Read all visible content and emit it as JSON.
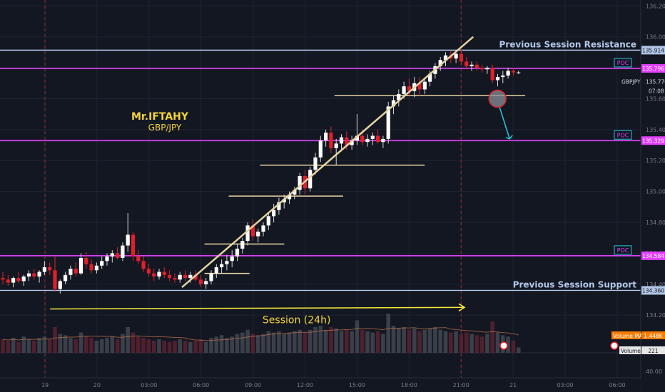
{
  "chart_data": {
    "type": "candlestick",
    "symbol": "GBPJPY",
    "last_price": "135.770",
    "countdown": "07:08",
    "author": "Mr.IFTAHY",
    "pair": "GBP/JPY",
    "price_ylim": [
      134.15,
      136.22
    ],
    "y_ticks": [
      "136.200",
      "136.000",
      "135.800",
      "135.600",
      "135.400",
      "135.200",
      "135.000",
      "134.800",
      "134.600",
      "134.400",
      "134.200"
    ],
    "x_labels": [
      {
        "label": "19",
        "t": 0.0
      },
      {
        "label": "20",
        "t": 3.0
      },
      {
        "label": "03:00",
        "t": 6.0
      },
      {
        "label": "06:00",
        "t": 9.0
      },
      {
        "label": "09:00",
        "t": 12.0
      },
      {
        "label": "12:00",
        "t": 15.0
      },
      {
        "label": "15:00",
        "t": 18.0
      },
      {
        "label": "18:00",
        "t": 21.0
      },
      {
        "label": "21:00",
        "t": 24.0
      },
      {
        "label": "21",
        "t": 27.0
      },
      {
        "label": "03:00",
        "t": 30.0
      },
      {
        "label": "06:00",
        "t": 33.0
      }
    ],
    "volume_axis_label": "40.00",
    "session_separators_t": [
      0.0,
      24.0
    ],
    "levels": [
      {
        "price": 135.914,
        "label": "135.914",
        "kind": "resistance",
        "annotation": "Previous Session Resistance",
        "color": "#b2c6e6"
      },
      {
        "price": 135.796,
        "label": "135.796",
        "kind": "poc",
        "annotation": "POC",
        "color": "#e040fb"
      },
      {
        "price": 135.329,
        "label": "135.329",
        "kind": "poc",
        "annotation": "POC",
        "color": "#e040fb"
      },
      {
        "price": 134.584,
        "label": "134.584",
        "kind": "poc",
        "annotation": "POC",
        "color": "#e040fb"
      },
      {
        "price": 134.36,
        "label": "134.360",
        "kind": "support",
        "annotation": "Previous Session Support",
        "color": "#b2c6e6"
      }
    ],
    "trendline": {
      "t1": 7.9,
      "p1": 134.38,
      "t2": 24.7,
      "p2": 136.0,
      "color": "#e6d3a3"
    },
    "horizontal_segments": [
      {
        "t1": 9.2,
        "t2": 11.8,
        "p": 134.47
      },
      {
        "t1": 9.2,
        "t2": 13.8,
        "p": 134.66
      },
      {
        "t1": 10.6,
        "t2": 17.2,
        "p": 134.97
      },
      {
        "t1": 12.4,
        "t2": 21.9,
        "p": 135.17
      },
      {
        "t1": 16.7,
        "t2": 27.7,
        "p": 135.62
      }
    ],
    "session_arrow": {
      "t1": 0.3,
      "t2": 24.2,
      "p_start": 134.24,
      "p_end": 134.25,
      "label": "Session (24h)",
      "color": "#f5eb3b"
    },
    "projection": {
      "circle_t": 26.1,
      "circle_p": 135.6,
      "arrow_t": 26.8,
      "arrow_p": 135.34,
      "color": "#26c6da"
    },
    "volume_ma": {
      "label": "Volume MA",
      "value": "1.448K"
    },
    "volume": {
      "label": "Volume",
      "value": "221"
    },
    "candles": [
      {
        "o": 134.44,
        "h": 134.48,
        "l": 134.4,
        "c": 134.43
      },
      {
        "o": 134.43,
        "h": 134.46,
        "l": 134.39,
        "c": 134.41
      },
      {
        "o": 134.41,
        "h": 134.45,
        "l": 134.38,
        "c": 134.44
      },
      {
        "o": 134.44,
        "h": 134.48,
        "l": 134.41,
        "c": 134.42
      },
      {
        "o": 134.42,
        "h": 134.46,
        "l": 134.39,
        "c": 134.45
      },
      {
        "o": 134.45,
        "h": 134.49,
        "l": 134.42,
        "c": 134.47
      },
      {
        "o": 134.47,
        "h": 134.5,
        "l": 134.43,
        "c": 134.45
      },
      {
        "o": 134.45,
        "h": 134.49,
        "l": 134.41,
        "c": 134.48
      },
      {
        "o": 134.48,
        "h": 134.55,
        "l": 134.46,
        "c": 134.51
      },
      {
        "o": 134.51,
        "h": 134.54,
        "l": 134.46,
        "c": 134.49
      },
      {
        "o": 134.49,
        "h": 134.58,
        "l": 134.35,
        "c": 134.37
      },
      {
        "o": 134.37,
        "h": 134.43,
        "l": 134.34,
        "c": 134.42
      },
      {
        "o": 134.42,
        "h": 134.48,
        "l": 134.4,
        "c": 134.46
      },
      {
        "o": 134.46,
        "h": 134.52,
        "l": 134.43,
        "c": 134.5
      },
      {
        "o": 134.5,
        "h": 134.54,
        "l": 134.45,
        "c": 134.47
      },
      {
        "o": 134.47,
        "h": 134.6,
        "l": 134.46,
        "c": 134.57
      },
      {
        "o": 134.57,
        "h": 134.61,
        "l": 134.5,
        "c": 134.53
      },
      {
        "o": 134.53,
        "h": 134.56,
        "l": 134.47,
        "c": 134.49
      },
      {
        "o": 134.49,
        "h": 134.54,
        "l": 134.47,
        "c": 134.52
      },
      {
        "o": 134.52,
        "h": 134.58,
        "l": 134.5,
        "c": 134.55
      },
      {
        "o": 134.55,
        "h": 134.6,
        "l": 134.52,
        "c": 134.58
      },
      {
        "o": 134.58,
        "h": 134.62,
        "l": 134.54,
        "c": 134.6
      },
      {
        "o": 134.6,
        "h": 134.64,
        "l": 134.56,
        "c": 134.57
      },
      {
        "o": 134.57,
        "h": 134.67,
        "l": 134.55,
        "c": 134.65
      },
      {
        "o": 134.65,
        "h": 134.86,
        "l": 134.61,
        "c": 134.72
      },
      {
        "o": 134.72,
        "h": 134.74,
        "l": 134.55,
        "c": 134.58
      },
      {
        "o": 134.58,
        "h": 134.62,
        "l": 134.53,
        "c": 134.55
      },
      {
        "o": 134.55,
        "h": 134.58,
        "l": 134.48,
        "c": 134.5
      },
      {
        "o": 134.5,
        "h": 134.53,
        "l": 134.45,
        "c": 134.47
      },
      {
        "o": 134.47,
        "h": 134.5,
        "l": 134.42,
        "c": 134.45
      },
      {
        "o": 134.45,
        "h": 134.5,
        "l": 134.43,
        "c": 134.48
      },
      {
        "o": 134.48,
        "h": 134.51,
        "l": 134.44,
        "c": 134.46
      },
      {
        "o": 134.46,
        "h": 134.49,
        "l": 134.42,
        "c": 134.44
      },
      {
        "o": 134.44,
        "h": 134.47,
        "l": 134.41,
        "c": 134.43
      },
      {
        "o": 134.43,
        "h": 134.48,
        "l": 134.41,
        "c": 134.46
      },
      {
        "o": 134.46,
        "h": 134.49,
        "l": 134.42,
        "c": 134.44
      },
      {
        "o": 134.44,
        "h": 134.48,
        "l": 134.41,
        "c": 134.46
      },
      {
        "o": 134.46,
        "h": 134.49,
        "l": 134.42,
        "c": 134.43
      },
      {
        "o": 134.43,
        "h": 134.46,
        "l": 134.38,
        "c": 134.4
      },
      {
        "o": 134.4,
        "h": 134.44,
        "l": 134.37,
        "c": 134.42
      },
      {
        "o": 134.42,
        "h": 134.49,
        "l": 134.4,
        "c": 134.47
      },
      {
        "o": 134.47,
        "h": 134.53,
        "l": 134.44,
        "c": 134.51
      },
      {
        "o": 134.51,
        "h": 134.56,
        "l": 134.47,
        "c": 134.53
      },
      {
        "o": 134.53,
        "h": 134.59,
        "l": 134.49,
        "c": 134.55
      },
      {
        "o": 134.55,
        "h": 134.62,
        "l": 134.51,
        "c": 134.58
      },
      {
        "o": 134.58,
        "h": 134.66,
        "l": 134.55,
        "c": 134.63
      },
      {
        "o": 134.63,
        "h": 134.7,
        "l": 134.6,
        "c": 134.68
      },
      {
        "o": 134.68,
        "h": 134.8,
        "l": 134.65,
        "c": 134.78
      },
      {
        "o": 134.78,
        "h": 134.82,
        "l": 134.68,
        "c": 134.71
      },
      {
        "o": 134.71,
        "h": 134.76,
        "l": 134.67,
        "c": 134.74
      },
      {
        "o": 134.74,
        "h": 134.8,
        "l": 134.71,
        "c": 134.78
      },
      {
        "o": 134.78,
        "h": 134.86,
        "l": 134.75,
        "c": 134.84
      },
      {
        "o": 134.84,
        "h": 134.92,
        "l": 134.8,
        "c": 134.88
      },
      {
        "o": 134.88,
        "h": 134.96,
        "l": 134.85,
        "c": 134.93
      },
      {
        "o": 134.93,
        "h": 134.98,
        "l": 134.89,
        "c": 134.95
      },
      {
        "o": 134.95,
        "h": 135.0,
        "l": 134.92,
        "c": 134.98
      },
      {
        "o": 134.98,
        "h": 135.03,
        "l": 134.95,
        "c": 135.01
      },
      {
        "o": 135.01,
        "h": 135.12,
        "l": 134.98,
        "c": 135.1
      },
      {
        "o": 135.1,
        "h": 135.14,
        "l": 134.98,
        "c": 135.02
      },
      {
        "o": 135.02,
        "h": 135.16,
        "l": 135.0,
        "c": 135.14
      },
      {
        "o": 135.14,
        "h": 135.25,
        "l": 135.11,
        "c": 135.22
      },
      {
        "o": 135.22,
        "h": 135.36,
        "l": 135.19,
        "c": 135.33
      },
      {
        "o": 135.33,
        "h": 135.4,
        "l": 135.29,
        "c": 135.38
      },
      {
        "o": 135.38,
        "h": 135.42,
        "l": 135.25,
        "c": 135.28
      },
      {
        "o": 135.28,
        "h": 135.34,
        "l": 135.17,
        "c": 135.31
      },
      {
        "o": 135.31,
        "h": 135.37,
        "l": 135.26,
        "c": 135.35
      },
      {
        "o": 135.35,
        "h": 135.39,
        "l": 135.27,
        "c": 135.3
      },
      {
        "o": 135.3,
        "h": 135.36,
        "l": 135.27,
        "c": 135.33
      },
      {
        "o": 135.33,
        "h": 135.5,
        "l": 135.3,
        "c": 135.36
      },
      {
        "o": 135.36,
        "h": 135.4,
        "l": 135.3,
        "c": 135.32
      },
      {
        "o": 135.32,
        "h": 135.37,
        "l": 135.29,
        "c": 135.34
      },
      {
        "o": 135.34,
        "h": 135.38,
        "l": 135.3,
        "c": 135.36
      },
      {
        "o": 135.36,
        "h": 135.4,
        "l": 135.31,
        "c": 135.32
      },
      {
        "o": 135.32,
        "h": 135.36,
        "l": 135.28,
        "c": 135.34
      },
      {
        "o": 135.34,
        "h": 135.58,
        "l": 135.31,
        "c": 135.55
      },
      {
        "o": 135.55,
        "h": 135.62,
        "l": 135.5,
        "c": 135.59
      },
      {
        "o": 135.59,
        "h": 135.66,
        "l": 135.55,
        "c": 135.63
      },
      {
        "o": 135.63,
        "h": 135.71,
        "l": 135.6,
        "c": 135.68
      },
      {
        "o": 135.68,
        "h": 135.73,
        "l": 135.62,
        "c": 135.65
      },
      {
        "o": 135.65,
        "h": 135.74,
        "l": 135.61,
        "c": 135.7
      },
      {
        "o": 135.7,
        "h": 135.74,
        "l": 135.62,
        "c": 135.66
      },
      {
        "o": 135.66,
        "h": 135.73,
        "l": 135.63,
        "c": 135.71
      },
      {
        "o": 135.71,
        "h": 135.78,
        "l": 135.68,
        "c": 135.76
      },
      {
        "o": 135.76,
        "h": 135.83,
        "l": 135.73,
        "c": 135.81
      },
      {
        "o": 135.81,
        "h": 135.87,
        "l": 135.78,
        "c": 135.85
      },
      {
        "o": 135.85,
        "h": 135.9,
        "l": 135.81,
        "c": 135.88
      },
      {
        "o": 135.88,
        "h": 135.91,
        "l": 135.83,
        "c": 135.86
      },
      {
        "o": 135.86,
        "h": 135.91,
        "l": 135.83,
        "c": 135.89
      },
      {
        "o": 135.89,
        "h": 135.92,
        "l": 135.82,
        "c": 135.84
      },
      {
        "o": 135.84,
        "h": 135.87,
        "l": 135.79,
        "c": 135.81
      },
      {
        "o": 135.81,
        "h": 135.84,
        "l": 135.78,
        "c": 135.82
      },
      {
        "o": 135.82,
        "h": 135.84,
        "l": 135.78,
        "c": 135.8
      },
      {
        "o": 135.8,
        "h": 135.82,
        "l": 135.77,
        "c": 135.79
      },
      {
        "o": 135.79,
        "h": 135.81,
        "l": 135.76,
        "c": 135.8
      },
      {
        "o": 135.8,
        "h": 135.82,
        "l": 135.7,
        "c": 135.72
      },
      {
        "o": 135.72,
        "h": 135.76,
        "l": 135.68,
        "c": 135.74
      },
      {
        "o": 135.74,
        "h": 135.78,
        "l": 135.7,
        "c": 135.75
      },
      {
        "o": 135.75,
        "h": 135.8,
        "l": 135.73,
        "c": 135.78
      },
      {
        "o": 135.78,
        "h": 135.8,
        "l": 135.75,
        "c": 135.77
      },
      {
        "o": 135.77,
        "h": 135.78,
        "l": 135.76,
        "c": 135.77
      }
    ],
    "volumes": [
      0.5,
      0.45,
      0.55,
      0.4,
      0.6,
      0.5,
      0.45,
      0.55,
      0.6,
      0.5,
      0.95,
      0.7,
      0.65,
      0.55,
      0.5,
      0.75,
      0.6,
      0.55,
      0.45,
      0.5,
      0.55,
      0.6,
      0.5,
      0.7,
      0.95,
      0.75,
      0.6,
      0.55,
      0.5,
      0.45,
      0.5,
      0.45,
      0.4,
      0.45,
      0.5,
      0.45,
      0.4,
      0.45,
      0.5,
      0.4,
      0.55,
      0.6,
      0.65,
      0.55,
      0.6,
      0.7,
      0.75,
      0.85,
      0.7,
      0.65,
      0.7,
      0.8,
      0.75,
      0.8,
      0.7,
      0.75,
      0.8,
      0.85,
      0.75,
      0.85,
      0.95,
      1.0,
      0.85,
      0.95,
      0.9,
      0.8,
      0.85,
      0.8,
      1.2,
      0.85,
      0.8,
      0.75,
      0.8,
      0.7,
      1.45,
      1.0,
      0.9,
      0.95,
      0.85,
      0.9,
      0.8,
      0.85,
      0.9,
      0.95,
      0.85,
      0.8,
      0.75,
      0.8,
      0.7,
      0.75,
      0.7,
      0.65,
      0.6,
      0.7,
      1.15,
      0.75,
      0.65,
      0.6,
      0.45,
      0.2
    ]
  }
}
